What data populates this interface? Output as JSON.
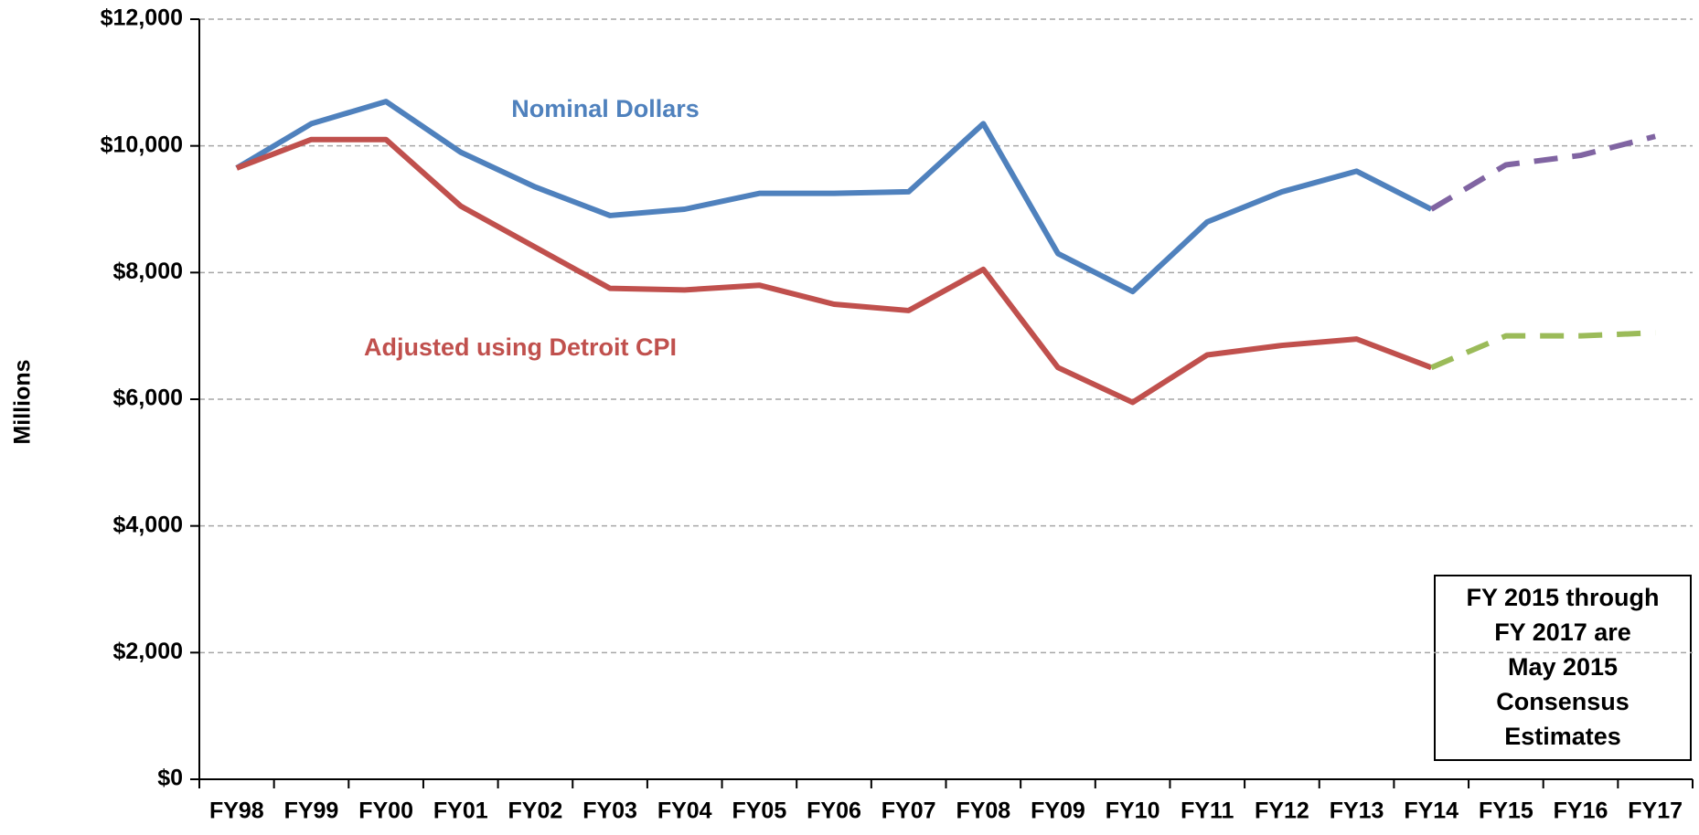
{
  "chart_data": {
    "type": "line",
    "y_label": "Millions",
    "categories": [
      "FY98",
      "FY99",
      "FY00",
      "FY01",
      "FY02",
      "FY03",
      "FY04",
      "FY05",
      "FY06",
      "FY07",
      "FY08",
      "FY09",
      "FY10",
      "FY11",
      "FY12",
      "FY13",
      "FY14",
      "FY15",
      "FY16",
      "FY17"
    ],
    "series": [
      {
        "name": "Nominal Dollars",
        "color": "#4f81bd",
        "dash": false,
        "values": [
          9650,
          10350,
          10700,
          9900,
          9350,
          8900,
          9000,
          9250,
          9250,
          9275,
          10350,
          8300,
          7700,
          8800,
          9275,
          9600,
          9000,
          null,
          null,
          null
        ]
      },
      {
        "name": "Adjusted using Detroit CPI",
        "color": "#c0504d",
        "dash": false,
        "values": [
          9650,
          10100,
          10100,
          9050,
          8400,
          7750,
          7725,
          7800,
          7500,
          7400,
          8050,
          6500,
          5950,
          6700,
          6850,
          6950,
          6500,
          null,
          null,
          null
        ]
      },
      {
        "color": "#8064a2",
        "dash": true,
        "values": [
          null,
          null,
          null,
          null,
          null,
          null,
          null,
          null,
          null,
          null,
          null,
          null,
          null,
          null,
          null,
          null,
          9000,
          9700,
          9850,
          10150
        ]
      },
      {
        "color": "#9bbb59",
        "dash": true,
        "values": [
          null,
          null,
          null,
          null,
          null,
          null,
          null,
          null,
          null,
          null,
          null,
          null,
          null,
          null,
          null,
          null,
          6500,
          7000,
          7000,
          7050
        ]
      }
    ],
    "ylim": [
      0,
      12000
    ],
    "yticks": [
      {
        "value": 0,
        "label": "$0"
      },
      {
        "value": 2000,
        "label": "$2,000"
      },
      {
        "value": 4000,
        "label": "$4,000"
      },
      {
        "value": 6000,
        "label": "$6,000"
      },
      {
        "value": 8000,
        "label": "$8,000"
      },
      {
        "value": 10000,
        "label": "$10,000"
      },
      {
        "value": 12000,
        "label": "$12,000"
      }
    ],
    "grid": true,
    "note": [
      "FY 2015 through",
      "FY 2017 are",
      "May 2015",
      "Consensus",
      "Estimates"
    ]
  }
}
